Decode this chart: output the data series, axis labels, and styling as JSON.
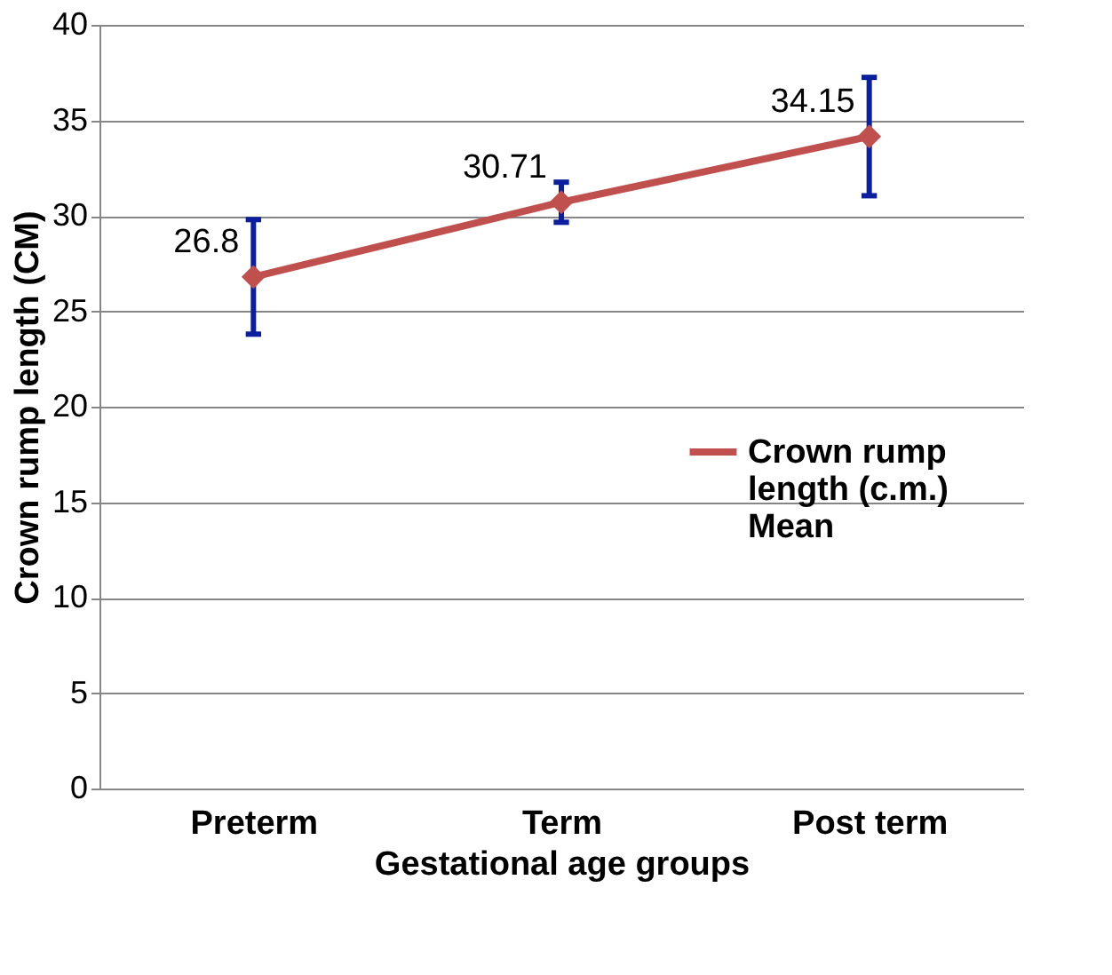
{
  "chart_data": {
    "type": "line",
    "xlabel": "Gestational age groups",
    "ylabel": "Crown rump length (CM)",
    "categories": [
      "Preterm",
      "Term",
      "Post term"
    ],
    "series": [
      {
        "name": "Crown rump length (c.m.) Mean",
        "color": "#c0504d",
        "values": [
          26.8,
          30.71,
          34.15
        ],
        "errors": [
          3.0,
          1.05,
          3.1
        ]
      }
    ],
    "ylim": [
      0,
      40
    ],
    "yticks": [
      0,
      5,
      10,
      15,
      20,
      25,
      30,
      35,
      40
    ],
    "grid": "y",
    "legend": "right",
    "marker": "diamond",
    "line_style": "solid",
    "data_labels": true
  }
}
